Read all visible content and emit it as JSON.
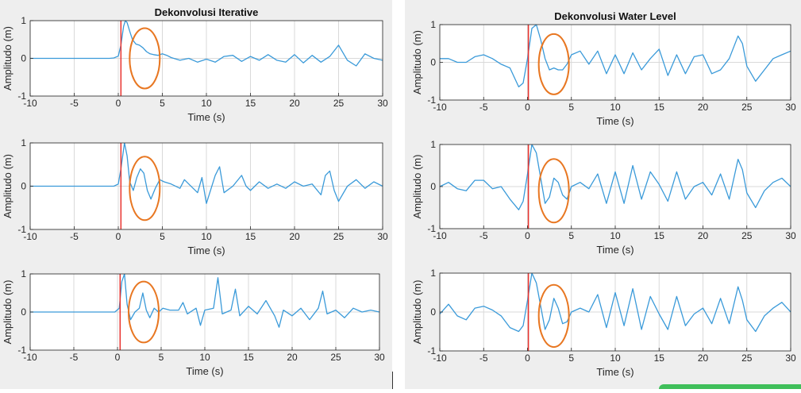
{
  "figure": {
    "left_title": "Dekonvolusi Iterative",
    "right_title": "Dekonvolusi Water Level"
  },
  "colors": {
    "trace": "#3a9ad9",
    "onset_line": "#e8322e",
    "highlight": "#e87722",
    "grid": "#d9d9d9",
    "panel_background": "#eeeeee"
  },
  "chart_data": [
    {
      "id": "iterative-1",
      "type": "line",
      "title": "Dekonvolusi Iterative",
      "xlabel": "Time (s)",
      "ylabel": "Amplitudo (m)",
      "xlim": [
        -10,
        30
      ],
      "ylim": [
        -1,
        1
      ],
      "xticks": [
        -10,
        -5,
        0,
        5,
        10,
        15,
        20,
        25,
        30
      ],
      "yticks": [
        -1,
        0,
        1
      ],
      "grid": true,
      "onset_time": 0.3,
      "highlight": {
        "x": 3,
        "y": 0.0
      },
      "x": [
        -10,
        -1,
        -0.5,
        0,
        0.3,
        0.6,
        0.8,
        1.0,
        1.3,
        1.6,
        2.0,
        2.4,
        2.8,
        3.2,
        3.6,
        4.0,
        4.5,
        5,
        5.5,
        6,
        7,
        8,
        9,
        10,
        11,
        12,
        13,
        14,
        15,
        16,
        17,
        18,
        19,
        20,
        21,
        22,
        23,
        24,
        25,
        26,
        27,
        28,
        29,
        30
      ],
      "y": [
        0,
        0,
        0.01,
        0.06,
        0.35,
        0.85,
        1.0,
        0.95,
        0.72,
        0.5,
        0.38,
        0.35,
        0.28,
        0.18,
        0.12,
        0.1,
        0.08,
        0.12,
        0.08,
        0.02,
        -0.05,
        0.0,
        -0.1,
        -0.02,
        -0.1,
        0.05,
        0.08,
        -0.08,
        0.05,
        -0.05,
        0.1,
        -0.05,
        -0.1,
        0.1,
        -0.12,
        0.08,
        -0.1,
        0.05,
        0.35,
        -0.05,
        -0.2,
        0.12,
        0.0,
        -0.05
      ]
    },
    {
      "id": "iterative-2",
      "type": "line",
      "title": "",
      "xlabel": "Time (s)",
      "ylabel": "Amplitudo (m)",
      "xlim": [
        -10,
        30
      ],
      "ylim": [
        -1,
        1
      ],
      "xticks": [
        -10,
        -5,
        0,
        5,
        10,
        15,
        20,
        25,
        30
      ],
      "yticks": [
        -1,
        0,
        1
      ],
      "grid": true,
      "onset_time": 0.3,
      "highlight": {
        "x": 3,
        "y": -0.05
      },
      "x": [
        -10,
        -0.5,
        0,
        0.3,
        0.7,
        1.0,
        1.3,
        1.7,
        2.1,
        2.5,
        2.9,
        3.3,
        3.7,
        4.2,
        4.7,
        5.2,
        6,
        7,
        7.5,
        8,
        9,
        9.5,
        10,
        11,
        11.5,
        12,
        13,
        14,
        14.5,
        15,
        16,
        17,
        18,
        19,
        20,
        21,
        22,
        23,
        23.5,
        24,
        24.5,
        25,
        26,
        27,
        28,
        29,
        30
      ],
      "y": [
        0,
        0,
        0.05,
        0.4,
        1.0,
        0.7,
        0.1,
        -0.1,
        0.2,
        0.4,
        0.3,
        -0.1,
        -0.3,
        -0.05,
        0.15,
        0.1,
        0.05,
        -0.05,
        0.15,
        0.05,
        -0.15,
        0.2,
        -0.4,
        0.25,
        0.45,
        -0.15,
        0.0,
        0.25,
        0.0,
        -0.1,
        0.1,
        -0.05,
        0.05,
        -0.05,
        0.1,
        0.0,
        0.05,
        -0.2,
        0.25,
        0.35,
        -0.1,
        -0.35,
        0.0,
        0.15,
        -0.05,
        0.1,
        0.0
      ]
    },
    {
      "id": "iterative-3",
      "type": "line",
      "title": "",
      "xlabel": "Time (s)",
      "ylabel": "Amplitudo (m)",
      "xlim": [
        -10,
        30
      ],
      "ylim": [
        -1,
        1
      ],
      "xticks": [
        -10,
        -5,
        0,
        5,
        10,
        15,
        20,
        25,
        30
      ],
      "yticks": [
        -1,
        0,
        1
      ],
      "grid": true,
      "onset_time": 0.3,
      "highlight": {
        "x": 3,
        "y": 0.0
      },
      "x": [
        -10,
        -0.3,
        0.2,
        0.5,
        0.8,
        1.1,
        1.5,
        2.0,
        2.5,
        2.9,
        3.3,
        3.7,
        4.2,
        4.7,
        5.2,
        6,
        7,
        7.5,
        8,
        9,
        9.5,
        10,
        11,
        11.5,
        12,
        13,
        13.5,
        14,
        15,
        16,
        17,
        18,
        18.5,
        19,
        20,
        21,
        22,
        23,
        23.5,
        24,
        25,
        26,
        27,
        28,
        29,
        30
      ],
      "y": [
        0,
        0,
        0.1,
        0.8,
        1.0,
        0.2,
        -0.2,
        0.0,
        0.1,
        0.5,
        0.05,
        -0.15,
        0.1,
        0.0,
        0.1,
        0.05,
        0.05,
        0.25,
        -0.05,
        0.1,
        -0.35,
        0.05,
        0.1,
        0.9,
        -0.05,
        0.05,
        0.6,
        -0.1,
        0.15,
        -0.05,
        0.3,
        -0.1,
        -0.4,
        0.05,
        -0.1,
        0.1,
        -0.2,
        0.1,
        0.55,
        -0.05,
        0.05,
        -0.15,
        0.1,
        0.0,
        0.05,
        0.0
      ]
    },
    {
      "id": "water-level-1",
      "type": "line",
      "title": "Dekonvolusi Water Level",
      "xlabel": "Time (s)",
      "ylabel": "Amplitudo (m)",
      "xlim": [
        -10,
        30
      ],
      "ylim": [
        -1,
        1
      ],
      "xticks": [
        -10,
        -5,
        0,
        5,
        10,
        15,
        20,
        25,
        30
      ],
      "yticks": [
        -1,
        0,
        1
      ],
      "grid": true,
      "onset_time": 0.1,
      "highlight": {
        "x": 3,
        "y": -0.05
      },
      "x": [
        -10,
        -9,
        -8,
        -7,
        -6,
        -5,
        -4,
        -3,
        -2,
        -1,
        -0.5,
        0,
        0.5,
        1.0,
        1.5,
        2.0,
        2.5,
        3.0,
        3.5,
        4.0,
        4.5,
        5,
        6,
        7,
        8,
        9,
        10,
        11,
        12,
        13,
        14,
        15,
        16,
        17,
        18,
        19,
        20,
        21,
        22,
        23,
        24,
        24.5,
        25,
        26,
        27,
        28,
        29,
        30
      ],
      "y": [
        0.1,
        0.1,
        0.0,
        0.0,
        0.15,
        0.2,
        0.1,
        -0.05,
        -0.15,
        -0.65,
        -0.55,
        0.1,
        0.9,
        1.0,
        0.6,
        0.1,
        -0.2,
        -0.15,
        -0.2,
        -0.2,
        -0.05,
        0.2,
        0.3,
        -0.05,
        0.3,
        -0.3,
        0.2,
        -0.3,
        0.25,
        -0.2,
        0.1,
        0.35,
        -0.35,
        0.2,
        -0.3,
        0.15,
        0.2,
        -0.3,
        -0.2,
        0.1,
        0.7,
        0.5,
        -0.1,
        -0.5,
        -0.2,
        0.1,
        0.2,
        0.3
      ]
    },
    {
      "id": "water-level-2",
      "type": "line",
      "title": "",
      "xlabel": "Time (s)",
      "ylabel": "Amplitudo (m)",
      "xlim": [
        -10,
        30
      ],
      "ylim": [
        -1,
        1
      ],
      "xticks": [
        -10,
        -5,
        0,
        5,
        10,
        15,
        20,
        25,
        30
      ],
      "yticks": [
        -1,
        0,
        1
      ],
      "grid": true,
      "onset_time": 0.1,
      "highlight": {
        "x": 3,
        "y": -0.1
      },
      "x": [
        -10,
        -9,
        -8,
        -7,
        -6,
        -5,
        -4,
        -3,
        -2,
        -1,
        -0.5,
        0,
        0.5,
        1.0,
        1.5,
        2.0,
        2.5,
        3.0,
        3.5,
        4.0,
        4.5,
        5,
        6,
        7,
        8,
        9,
        10,
        11,
        12,
        13,
        14,
        15,
        16,
        17,
        18,
        19,
        20,
        21,
        22,
        23,
        24,
        24.5,
        25,
        26,
        27,
        28,
        29,
        30
      ],
      "y": [
        0.0,
        0.1,
        -0.05,
        -0.1,
        0.15,
        0.15,
        -0.05,
        0.0,
        -0.3,
        -0.55,
        -0.35,
        0.3,
        1.0,
        0.8,
        0.2,
        -0.4,
        -0.25,
        0.2,
        0.1,
        -0.2,
        -0.3,
        0.0,
        0.1,
        -0.05,
        0.3,
        -0.4,
        0.35,
        -0.4,
        0.5,
        -0.3,
        0.35,
        0.05,
        -0.35,
        0.35,
        -0.3,
        0.0,
        0.1,
        -0.2,
        0.3,
        -0.3,
        0.65,
        0.4,
        -0.15,
        -0.5,
        -0.1,
        0.1,
        0.2,
        0.0
      ]
    },
    {
      "id": "water-level-3",
      "type": "line",
      "title": "",
      "xlabel": "Time (s)",
      "ylabel": "Amplitudo (m)",
      "xlim": [
        -10,
        30
      ],
      "ylim": [
        -1,
        1
      ],
      "xticks": [
        -10,
        -5,
        0,
        5,
        10,
        15,
        20,
        25,
        30
      ],
      "yticks": [
        -1,
        0,
        1
      ],
      "grid": true,
      "onset_time": 0.1,
      "highlight": {
        "x": 3,
        "y": -0.1
      },
      "x": [
        -10,
        -9,
        -8,
        -7,
        -6,
        -5,
        -4,
        -3,
        -2,
        -1,
        -0.5,
        0,
        0.5,
        1.0,
        1.5,
        2.0,
        2.5,
        3.0,
        3.5,
        4.0,
        4.5,
        5,
        6,
        7,
        8,
        9,
        10,
        11,
        12,
        13,
        14,
        15,
        16,
        17,
        18,
        19,
        20,
        21,
        22,
        23,
        24,
        24.5,
        25,
        26,
        27,
        28,
        29,
        30
      ],
      "y": [
        -0.05,
        0.2,
        -0.1,
        -0.2,
        0.1,
        0.15,
        0.05,
        -0.1,
        -0.4,
        -0.5,
        -0.35,
        0.3,
        1.0,
        0.75,
        0.15,
        -0.45,
        -0.2,
        0.35,
        0.1,
        -0.3,
        -0.25,
        0.0,
        0.1,
        0.0,
        0.45,
        -0.4,
        0.5,
        -0.35,
        0.6,
        -0.45,
        0.4,
        -0.05,
        -0.45,
        0.4,
        -0.35,
        -0.05,
        0.1,
        -0.3,
        0.35,
        -0.3,
        0.65,
        0.3,
        -0.2,
        -0.5,
        -0.1,
        0.1,
        0.25,
        0.0
      ]
    }
  ]
}
